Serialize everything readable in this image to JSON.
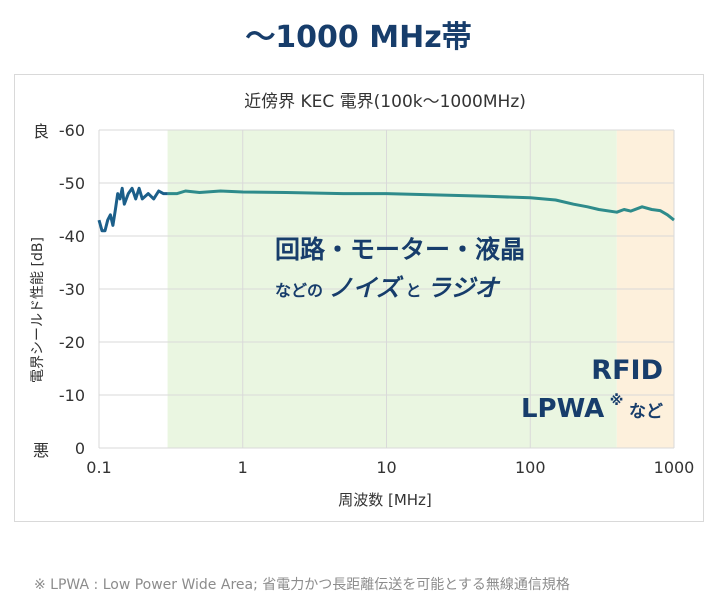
{
  "heading": "～1000 MHz帯",
  "footnote": "※ LPWA : Low Power Wide Area; 省電力かつ長距離伝送を可能とする無線通信規格",
  "colors": {
    "heading": "#173d6b",
    "line": "#2e8b8b",
    "line_low": "#1c5f8a",
    "band_green": "#eaf6e1",
    "band_orange": "#fdf0dc",
    "annotation": "#173d6b"
  },
  "chart_data": {
    "type": "line",
    "title": "近傍界 KEC 電界(100k～1000MHz)",
    "xlabel": "周波数 [MHz]",
    "ylabel": "電界シールド性能 [dB]",
    "x_scale": "log",
    "xlim": [
      0.1,
      1000
    ],
    "ylim": [
      0,
      -60
    ],
    "x_ticks": [
      "0.1",
      "1",
      "10",
      "100",
      "1000"
    ],
    "y_ticks": [
      "-60",
      "-50",
      "-40",
      "-30",
      "-20",
      "-10",
      "0"
    ],
    "y_end_labels": {
      "top": "良",
      "bottom": "悪"
    },
    "grid": true,
    "bands": [
      {
        "from": 0.3,
        "to": 400,
        "color": "#eaf6e1"
      },
      {
        "from": 400,
        "to": 1000,
        "color": "#fdf0dc"
      }
    ],
    "annotations": [
      {
        "line1": "回路・モーター・液晶",
        "line2_prefix": "などの",
        "line2_main": "ノイズ",
        "line2_mid": "と",
        "line2_end": "ラジオ"
      },
      {
        "line1": "RFID",
        "line2": "LPWA",
        "line2_sup": "※",
        "line2_suffix": " など"
      }
    ],
    "series": [
      {
        "points": [
          [
            0.1,
            -43
          ],
          [
            0.105,
            -41
          ],
          [
            0.11,
            -41
          ],
          [
            0.115,
            -43
          ],
          [
            0.12,
            -44
          ],
          [
            0.125,
            -42
          ],
          [
            0.13,
            -45
          ],
          [
            0.135,
            -48
          ],
          [
            0.14,
            -47
          ],
          [
            0.145,
            -49
          ],
          [
            0.15,
            -46
          ],
          [
            0.16,
            -48
          ],
          [
            0.17,
            -49
          ],
          [
            0.18,
            -47
          ],
          [
            0.19,
            -49
          ],
          [
            0.2,
            -47
          ],
          [
            0.22,
            -48
          ],
          [
            0.24,
            -47
          ],
          [
            0.26,
            -48.5
          ],
          [
            0.28,
            -48
          ],
          [
            0.3,
            -48
          ],
          [
            0.35,
            -48
          ],
          [
            0.4,
            -48.5
          ],
          [
            0.5,
            -48.2
          ],
          [
            0.7,
            -48.5
          ],
          [
            1,
            -48.3
          ],
          [
            2,
            -48.2
          ],
          [
            5,
            -48
          ],
          [
            10,
            -48
          ],
          [
            20,
            -47.8
          ],
          [
            50,
            -47.5
          ],
          [
            100,
            -47.2
          ],
          [
            150,
            -46.8
          ],
          [
            200,
            -46
          ],
          [
            250,
            -45.5
          ],
          [
            300,
            -45
          ],
          [
            400,
            -44.5
          ],
          [
            450,
            -45
          ],
          [
            500,
            -44.7
          ],
          [
            600,
            -45.5
          ],
          [
            700,
            -45
          ],
          [
            800,
            -44.8
          ],
          [
            900,
            -44
          ],
          [
            1000,
            -43
          ]
        ]
      }
    ]
  }
}
